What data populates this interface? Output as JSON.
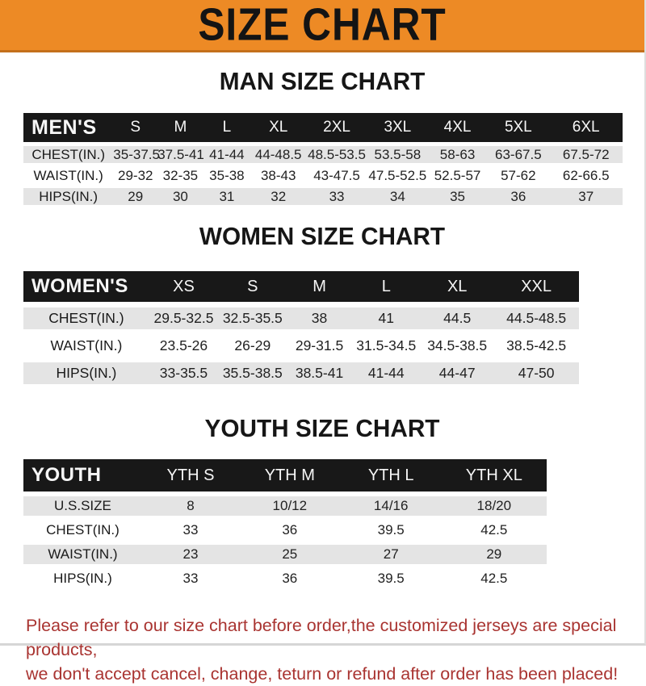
{
  "banner": {
    "title": "SIZE CHART"
  },
  "sections": [
    {
      "title": "MAN SIZE CHART",
      "header_label": "MEN'S",
      "sizes": [
        "S",
        "M",
        "L",
        "XL",
        "2XL",
        "3XL",
        "4XL",
        "5XL",
        "6XL"
      ],
      "rows": [
        {
          "label": "CHEST(IN.)",
          "values": [
            "35-37.5",
            "37.5-41",
            "41-44",
            "44-48.5",
            "48.5-53.5",
            "53.5-58",
            "58-63",
            "63-67.5",
            "67.5-72"
          ]
        },
        {
          "label": "WAIST(IN.)",
          "values": [
            "29-32",
            "32-35",
            "35-38",
            "38-43",
            "43-47.5",
            "47.5-52.5",
            "52.5-57",
            "57-62",
            "62-66.5"
          ]
        },
        {
          "label": "HIPS(IN.)",
          "values": [
            "29",
            "30",
            "31",
            "32",
            "33",
            "34",
            "35",
            "36",
            "37"
          ]
        }
      ]
    },
    {
      "title": "WOMEN SIZE CHART",
      "header_label": "WOMEN'S",
      "sizes": [
        "XS",
        "S",
        "M",
        "L",
        "XL",
        "XXL"
      ],
      "rows": [
        {
          "label": "CHEST(IN.)",
          "values": [
            "29.5-32.5",
            "32.5-35.5",
            "38",
            "41",
            "44.5",
            "44.5-48.5"
          ]
        },
        {
          "label": "WAIST(IN.)",
          "values": [
            "23.5-26",
            "26-29",
            "29-31.5",
            "31.5-34.5",
            "34.5-38.5",
            "38.5-42.5"
          ]
        },
        {
          "label": "HIPS(IN.)",
          "values": [
            "33-35.5",
            "35.5-38.5",
            "38.5-41",
            "41-44",
            "44-47",
            "47-50"
          ]
        }
      ]
    },
    {
      "title": "YOUTH SIZE CHART",
      "header_label": "YOUTH",
      "sizes": [
        "YTH S",
        "YTH M",
        "YTH L",
        "YTH XL"
      ],
      "rows": [
        {
          "label": "U.S.SIZE",
          "values": [
            "8",
            "10/12",
            "14/16",
            "18/20"
          ]
        },
        {
          "label": "CHEST(IN.)",
          "values": [
            "33",
            "36",
            "39.5",
            "42.5"
          ]
        },
        {
          "label": "WAIST(IN.)",
          "values": [
            "23",
            "25",
            "27",
            "29"
          ]
        },
        {
          "label": "HIPS(IN.)",
          "values": [
            "33",
            "36",
            "39.5",
            "42.5"
          ]
        }
      ]
    }
  ],
  "footer": {
    "line1": "Please refer to our size chart before order,the customized jerseys are special products,",
    "line2": "we don't accept cancel, change, teturn or refund after order has been placed!"
  },
  "colors": {
    "banner_orange": "#ED8A25",
    "banner_edge": "#C4701C",
    "header_bar_black": "#181818",
    "row_gray": "#E4E4E4",
    "note_red": "#A93431"
  }
}
